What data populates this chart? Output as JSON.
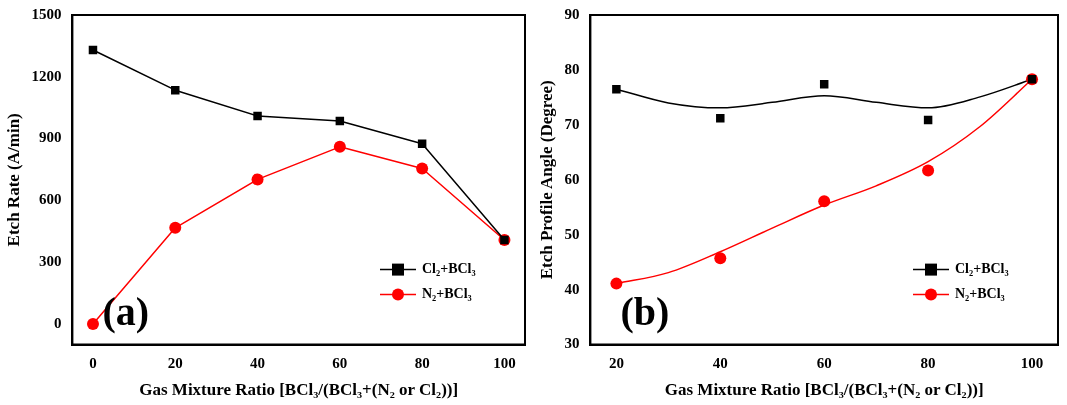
{
  "chart_data": [
    {
      "type": "line",
      "xlabel": "Gas Mixture Ratio [BCl₃/(BCl₃+(N₂ or Cl₂))]",
      "ylabel": "Etch Rate (A/min)",
      "annotations": [
        "(a)"
      ],
      "x": [
        0,
        20,
        40,
        60,
        80,
        100
      ],
      "xlim": [
        -5,
        105
      ],
      "xticks": [
        0,
        20,
        40,
        60,
        80,
        100
      ],
      "ylim": [
        -100,
        1500
      ],
      "yticks": [
        0,
        300,
        600,
        900,
        1200,
        1500
      ],
      "grid": false,
      "legend": "bottom right",
      "series": [
        {
          "name": "Cl₂+BCl₃",
          "color": "#000000",
          "marker": "square",
          "values": [
            1330,
            1135,
            1010,
            985,
            875,
            408
          ]
        },
        {
          "name": "N₂+BCl₃",
          "color": "#ff0000",
          "marker": "circle",
          "values": [
            0,
            467,
            702,
            860,
            755,
            408
          ]
        }
      ]
    },
    {
      "type": "scatter",
      "xlabel": "Gas Mixture Ratio [BCl₃/(BCl₃+(N₂ or Cl₂))]",
      "ylabel": "Etch Profile Angle (Degree)",
      "annotations": [
        "(b)"
      ],
      "x": [
        20,
        40,
        60,
        80,
        100
      ],
      "xlim": [
        15,
        105
      ],
      "xticks": [
        20,
        40,
        60,
        80,
        100
      ],
      "ylim": [
        30,
        90
      ],
      "yticks": [
        30,
        40,
        50,
        60,
        70,
        80,
        90
      ],
      "grid": false,
      "legend": "bottom right",
      "series": [
        {
          "name": "Cl₂+BCl₃",
          "color": "#000000",
          "marker": "square",
          "values": [
            76.5,
            71.2,
            77.4,
            70.9,
            78.3
          ]
        },
        {
          "name": "N₂+BCl₃",
          "color": "#ff0000",
          "marker": "circle",
          "values": [
            41.1,
            45.7,
            56.1,
            61.7,
            78.3
          ]
        },
        {
          "type": "line",
          "color": "#000000",
          "marker": "none",
          "x": [
            20,
            30,
            40,
            50,
            60,
            70,
            80,
            90,
            100
          ],
          "values": [
            76.5,
            74.0,
            73.1,
            74.1,
            75.3,
            74.1,
            73.1,
            75.1,
            78.3
          ]
        },
        {
          "type": "line",
          "color": "#ff0000",
          "marker": "none",
          "x": [
            20,
            30,
            40,
            50,
            60,
            70,
            80,
            90,
            100
          ],
          "values": [
            41.1,
            43.1,
            46.9,
            51.2,
            55.4,
            58.9,
            63.3,
            69.7,
            78.3
          ]
        }
      ]
    }
  ]
}
